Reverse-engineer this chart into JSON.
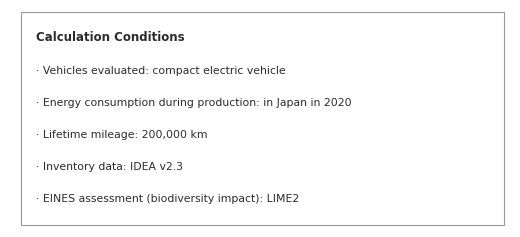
{
  "title": "Calculation Conditions",
  "bullet_lines": [
    "· Vehicles evaluated: compact electric vehicle",
    "· Energy consumption during production: in Japan in 2020",
    "· Lifetime mileage: 200,000 km",
    "· Inventory data: IDEA v2.3",
    "· EINES assessment (biodiversity impact): LIME2"
  ],
  "background_color": "#ffffff",
  "text_color": "#2b2b2b",
  "border_color": "#999999",
  "title_fontsize": 8.5,
  "body_fontsize": 7.8,
  "fig_width": 5.2,
  "fig_height": 2.37
}
